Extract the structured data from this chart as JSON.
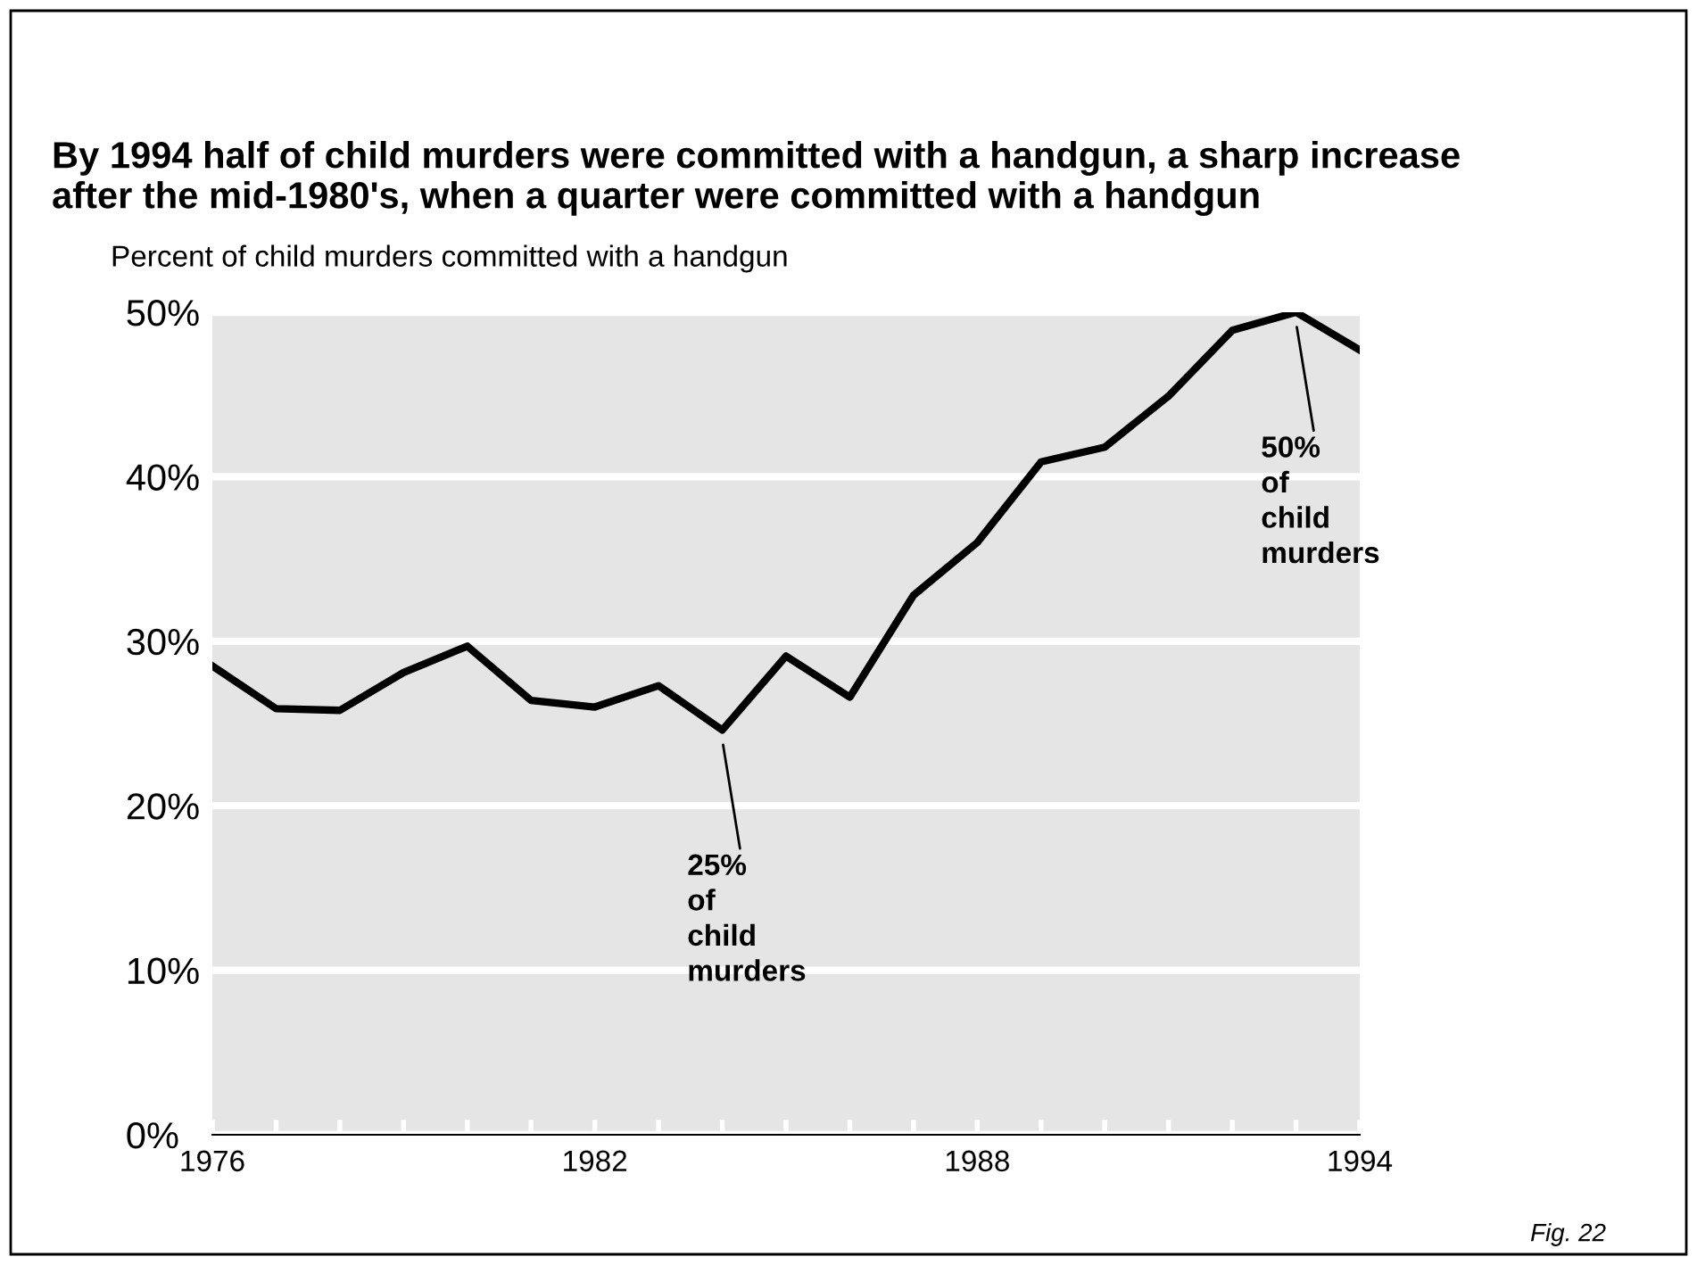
{
  "chart_data": {
    "type": "line",
    "title": "By 1994 half of child murders were committed with a handgun, a sharp increase\nafter the mid-1980's, when a quarter were committed with a handgun",
    "ylabel": "Percent of child murders committed with a handgun",
    "x": [
      1976,
      1977,
      1978,
      1979,
      1980,
      1981,
      1982,
      1983,
      1984,
      1985,
      1986,
      1987,
      1988,
      1989,
      1990,
      1991,
      1992,
      1993,
      1994
    ],
    "series": [
      {
        "color": "#000000",
        "values": [
          28.5,
          25.9,
          25.8,
          28.1,
          29.7,
          26.4,
          26.0,
          27.3,
          24.6,
          29.1,
          26.6,
          32.8,
          36.0,
          40.9,
          41.8,
          44.9,
          48.9,
          50.0,
          47.7
        ]
      }
    ],
    "xlim": [
      1976,
      1994
    ],
    "xticks": [
      1976,
      {
        "value": 1977,
        "label": null
      },
      {
        "value": 1978,
        "label": null
      },
      {
        "value": 1979,
        "label": null
      },
      {
        "value": 1980,
        "label": null
      },
      {
        "value": 1981,
        "label": null
      },
      1982,
      {
        "value": 1983,
        "label": null
      },
      {
        "value": 1984,
        "label": null
      },
      {
        "value": 1985,
        "label": null
      },
      {
        "value": 1986,
        "label": null
      },
      {
        "value": 1987,
        "label": null
      },
      1988,
      {
        "value": 1989,
        "label": null
      },
      {
        "value": 1990,
        "label": null
      },
      {
        "value": 1991,
        "label": null
      },
      {
        "value": 1992,
        "label": null
      },
      {
        "value": 1993,
        "label": null
      },
      1994
    ],
    "ylim": [
      0,
      50
    ],
    "yticks": [
      {
        "value": 0,
        "label": "0%"
      },
      {
        "value": 10,
        "label": "10%"
      },
      {
        "value": 20,
        "label": "20%"
      },
      {
        "value": 30,
        "label": "30%"
      },
      {
        "value": 40,
        "label": "40%"
      },
      {
        "value": 50,
        "label": "50%"
      }
    ],
    "grid": "y",
    "legend": false,
    "marker": "none",
    "line_style": "solid",
    "annotations": [
      {
        "text": "25%\nof\nchild\nmurders",
        "x": 1984,
        "y": 24.6
      },
      {
        "text": "50%\nof\nchild\nmurders",
        "x": 1993,
        "y": 50.0
      },
      "Fig. 22"
    ]
  }
}
